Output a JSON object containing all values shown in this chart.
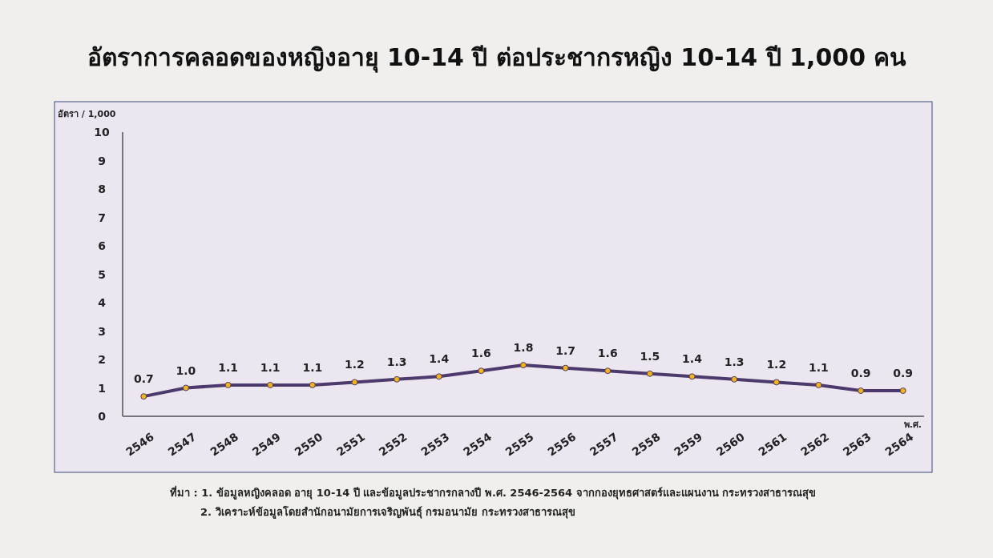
{
  "chart_data": {
    "type": "line",
    "title": "อัตราการคลอดของหญิงอายุ 10-14 ปี ต่อประชากรหญิง 10-14 ปี 1,000 คน",
    "ylabel": "อัตรา / 1,000",
    "xlabel": "พ.ศ.",
    "categories": [
      "2546",
      "2547",
      "2548",
      "2549",
      "2550",
      "2551",
      "2552",
      "2553",
      "2554",
      "2555",
      "2556",
      "2557",
      "2558",
      "2559",
      "2560",
      "2561",
      "2562",
      "2563",
      "2564"
    ],
    "series": [
      {
        "color": "#4b3a6b",
        "values": [
          0.7,
          1.0,
          1.1,
          1.1,
          1.1,
          1.2,
          1.3,
          1.4,
          1.6,
          1.8,
          1.7,
          1.6,
          1.5,
          1.4,
          1.3,
          1.2,
          1.1,
          0.9,
          0.9
        ],
        "value_labels": [
          "0.7",
          "1.0",
          "1.1",
          "1.1",
          "1.1",
          "1.2",
          "1.3",
          "1.4",
          "1.6",
          "1.8",
          "1.7",
          "1.6",
          "1.5",
          "1.4",
          "1.3",
          "1.2",
          "1.1",
          "0.9",
          "0.9"
        ]
      }
    ],
    "ylim": [
      0,
      10
    ],
    "yticks": [
      0,
      1,
      2,
      3,
      4,
      5,
      6,
      7,
      8,
      9,
      10
    ],
    "grid": false,
    "marker": "circle",
    "line_style": "solid",
    "annotations": [
      "ที่มา : 1. ข้อมูลหญิงคลอด อายุ 10-14 ปี และข้อมูลประชากรกลางปี พ.ศ. 2546-2564 จากกองยุทธศาสตร์และแผนงาน กระทรวงสาธารณสุข",
      "2. วิเคราะห์ข้อมูลโดยสำนักอนามัยการเจริญพันธุ์  กรมอนามัย  กระทรวงสาธารณสุข"
    ]
  }
}
